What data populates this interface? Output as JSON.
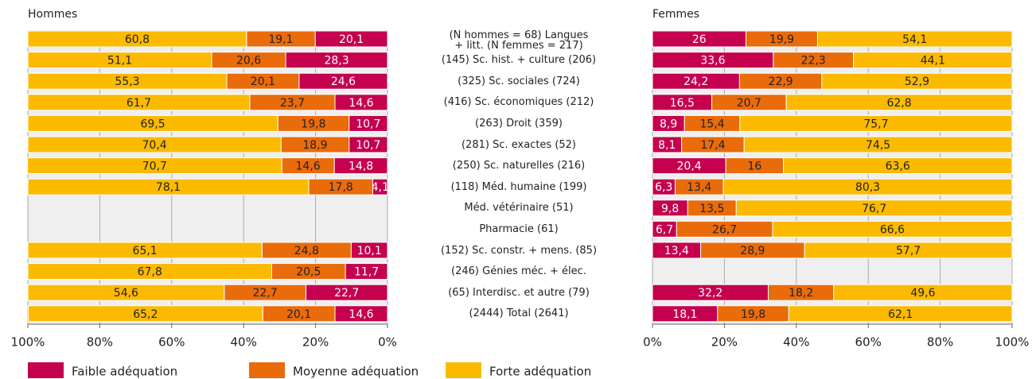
{
  "chart_data": {
    "type": "bar",
    "orientation": "horizontal",
    "stacked": true,
    "grid": true,
    "categories": [
      "(N hommes = 68) Langues\n+ litt. (N femmes = 217)",
      "(145) Sc. hist. + culture (206)",
      "(325) Sc. sociales (724)",
      "(416) Sc. économiques (212)",
      "(263) Droit (359)",
      "(281) Sc. exactes (52)",
      "(250) Sc. naturelles (216)",
      "(118) Méd. humaine (199)",
      "Méd. vétérinaire (51)",
      "Pharmacie (61)",
      "(152) Sc. constr. + mens. (85)",
      "(246) Génies méc. + élec.",
      "(65) Interdisc. et autre (79)",
      "(2444) Total (2641)"
    ],
    "series": [
      {
        "name": "Faible adéquation",
        "color": "#c4004f"
      },
      {
        "name": "Moyenne adéquation",
        "color": "#ea6b0a"
      },
      {
        "name": "Forte adéquation",
        "color": "#fbba00"
      }
    ],
    "panels": [
      {
        "title": "Hommes",
        "xlim": [
          100,
          0
        ],
        "xticks": [
          {
            "value": 100,
            "label": "100%"
          },
          {
            "value": 80,
            "label": "80%"
          },
          {
            "value": 60,
            "label": "60%"
          },
          {
            "value": 40,
            "label": "40%"
          },
          {
            "value": 20,
            "label": "20%"
          },
          {
            "value": 0,
            "label": "0%"
          }
        ],
        "values": [
          [
            20.1,
            28.3,
            24.6,
            14.6,
            10.7,
            10.7,
            14.8,
            4.1,
            null,
            null,
            10.1,
            11.7,
            22.7,
            14.6
          ],
          [
            19.1,
            20.6,
            20.1,
            23.7,
            19.8,
            18.9,
            14.6,
            17.8,
            null,
            null,
            24.8,
            20.5,
            22.7,
            20.1
          ],
          [
            60.8,
            51.1,
            55.3,
            61.7,
            69.5,
            70.4,
            70.7,
            78.1,
            null,
            null,
            65.1,
            67.8,
            54.6,
            65.2
          ]
        ],
        "value_labels": [
          [
            "20,1",
            "28,3",
            "24,6",
            "14,6",
            "10,7",
            "10,7",
            "14,8",
            "4,1",
            null,
            null,
            "10,1",
            "11,7",
            "22,7",
            "14,6"
          ],
          [
            "19,1",
            "20,6",
            "20,1",
            "23,7",
            "19,8",
            "18,9",
            "14,6",
            "17,8",
            null,
            null,
            "24,8",
            "20,5",
            "22,7",
            "20,1"
          ],
          [
            "60,8",
            "51,1",
            "55,3",
            "61,7",
            "69,5",
            "70,4",
            "70,7",
            "78,1",
            null,
            null,
            "65,1",
            "67,8",
            "54,6",
            "65,2"
          ]
        ]
      },
      {
        "title": "Femmes",
        "xlim": [
          0,
          100
        ],
        "xticks": [
          {
            "value": 0,
            "label": "0%"
          },
          {
            "value": 20,
            "label": "20%"
          },
          {
            "value": 40,
            "label": "40%"
          },
          {
            "value": 60,
            "label": "60%"
          },
          {
            "value": 80,
            "label": "80%"
          },
          {
            "value": 100,
            "label": "100%"
          }
        ],
        "values": [
          [
            26,
            33.6,
            24.2,
            16.5,
            8.9,
            8.1,
            20.4,
            6.3,
            9.8,
            6.7,
            13.4,
            null,
            32.2,
            18.1
          ],
          [
            19.9,
            22.3,
            22.9,
            20.7,
            15.4,
            17.4,
            16,
            13.4,
            13.5,
            26.7,
            28.9,
            null,
            18.2,
            19.8
          ],
          [
            54.1,
            44.1,
            52.9,
            62.8,
            75.7,
            74.5,
            63.6,
            80.3,
            76.7,
            66.6,
            57.7,
            null,
            49.6,
            62.1
          ]
        ],
        "value_labels": [
          [
            "26",
            "33,6",
            "24,2",
            "16,5",
            "8,9",
            "8,1",
            "20,4",
            "6,3",
            "9,8",
            "6,7",
            "13,4",
            null,
            "32,2",
            "18,1"
          ],
          [
            "19,9",
            "22,3",
            "22,9",
            "20,7",
            "15,4",
            "17,4",
            "16",
            "13,4",
            "13,5",
            "26,7",
            "28,9",
            null,
            "18,2",
            "19,8"
          ],
          [
            "54,1",
            "44,1",
            "52,9",
            "62,8",
            "75,7",
            "74,5",
            "63,6",
            "80,3",
            "76,7",
            "66,6",
            "57,7",
            null,
            "49,6",
            "62,1"
          ]
        ]
      }
    ]
  }
}
